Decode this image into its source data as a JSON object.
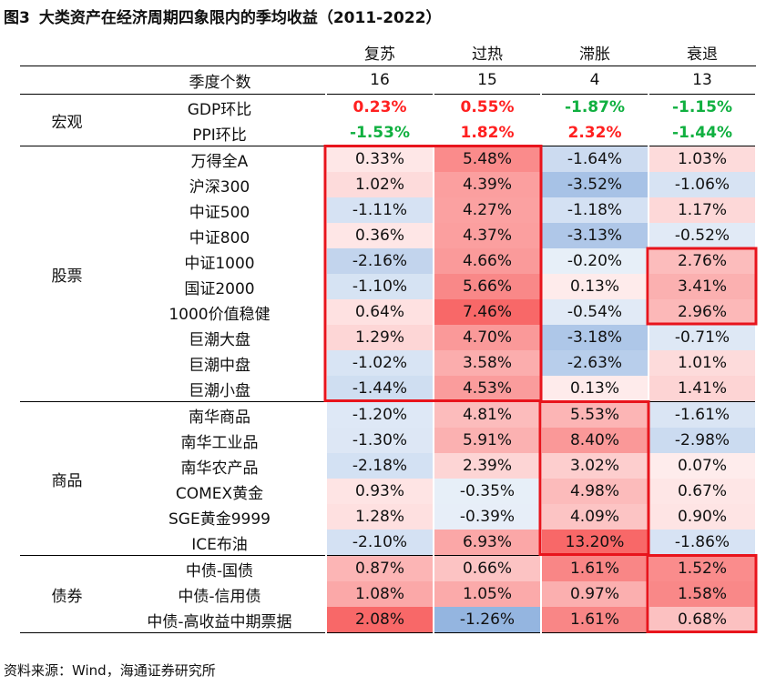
{
  "title": {
    "figure_label": "图3",
    "text": "大类资产在经济周期四象限内的季均收益（2011-2022）"
  },
  "columns": [
    "复苏",
    "过热",
    "滞胀",
    "衰退"
  ],
  "quarter_count": {
    "label": "季度个数",
    "values": [
      "16",
      "15",
      "4",
      "13"
    ]
  },
  "groups": [
    {
      "name": "宏观",
      "rows": [
        {
          "label": "GDP环比",
          "values": [
            "0.23%",
            "0.55%",
            "-1.87%",
            "-1.15%"
          ],
          "styles": [
            "red",
            "red",
            "green",
            "green"
          ]
        },
        {
          "label": "PPI环比",
          "values": [
            "-1.53%",
            "1.82%",
            "2.32%",
            "-1.44%"
          ],
          "styles": [
            "green",
            "red",
            "red",
            "green"
          ]
        }
      ]
    },
    {
      "name": "股票",
      "rows": [
        {
          "label": "万得全A",
          "values": [
            "0.33%",
            "5.48%",
            "-1.64%",
            "1.03%"
          ]
        },
        {
          "label": "沪深300",
          "values": [
            "1.02%",
            "4.39%",
            "-3.52%",
            "-1.06%"
          ]
        },
        {
          "label": "中证500",
          "values": [
            "-1.11%",
            "4.27%",
            "-1.18%",
            "1.17%"
          ]
        },
        {
          "label": "中证800",
          "values": [
            "0.36%",
            "4.37%",
            "-3.13%",
            "-0.52%"
          ]
        },
        {
          "label": "中证1000",
          "values": [
            "-2.16%",
            "4.66%",
            "-0.20%",
            "2.76%"
          ]
        },
        {
          "label": "国证2000",
          "values": [
            "-1.10%",
            "5.66%",
            "0.13%",
            "3.41%"
          ]
        },
        {
          "label": "1000价值稳健",
          "values": [
            "0.64%",
            "7.46%",
            "-0.54%",
            "2.96%"
          ]
        },
        {
          "label": "巨潮大盘",
          "values": [
            "1.29%",
            "4.70%",
            "-3.18%",
            "-0.71%"
          ]
        },
        {
          "label": "巨潮中盘",
          "values": [
            "-1.02%",
            "3.58%",
            "-2.63%",
            "1.01%"
          ]
        },
        {
          "label": "巨潮小盘",
          "values": [
            "-1.44%",
            "4.53%",
            "0.13%",
            "1.41%"
          ]
        }
      ]
    },
    {
      "name": "商品",
      "rows": [
        {
          "label": "南华商品",
          "values": [
            "-1.20%",
            "4.81%",
            "5.53%",
            "-1.61%"
          ]
        },
        {
          "label": "南华工业品",
          "values": [
            "-1.30%",
            "5.91%",
            "8.40%",
            "-2.98%"
          ]
        },
        {
          "label": "南华农产品",
          "values": [
            "-2.18%",
            "2.39%",
            "3.02%",
            "0.07%"
          ]
        },
        {
          "label": "COMEX黄金",
          "values": [
            "0.93%",
            "-0.35%",
            "4.98%",
            "0.67%"
          ]
        },
        {
          "label": "SGE黄金9999",
          "values": [
            "1.28%",
            "-0.39%",
            "4.09%",
            "0.90%"
          ]
        },
        {
          "label": "ICE布油",
          "values": [
            "-2.10%",
            "6.93%",
            "13.20%",
            "-1.86%"
          ]
        }
      ]
    },
    {
      "name": "债券",
      "rows": [
        {
          "label": "中债-国债",
          "values": [
            "0.87%",
            "0.66%",
            "1.61%",
            "1.52%"
          ]
        },
        {
          "label": "中债-信用债",
          "values": [
            "1.08%",
            "1.05%",
            "0.97%",
            "1.58%"
          ]
        },
        {
          "label": "中债-高收益中期票据",
          "values": [
            "2.08%",
            "-1.26%",
            "1.61%",
            "0.68%"
          ]
        }
      ]
    }
  ],
  "colors": {
    "positive_strong": "#f86868",
    "neutral": "#ffffff",
    "negative_strong": "#5b8dd0",
    "highlight_box": "#e8141c",
    "macro_red": "#ff2020",
    "macro_green": "#10b040"
  },
  "source": "资料来源：Wind，海通证券研究所"
}
